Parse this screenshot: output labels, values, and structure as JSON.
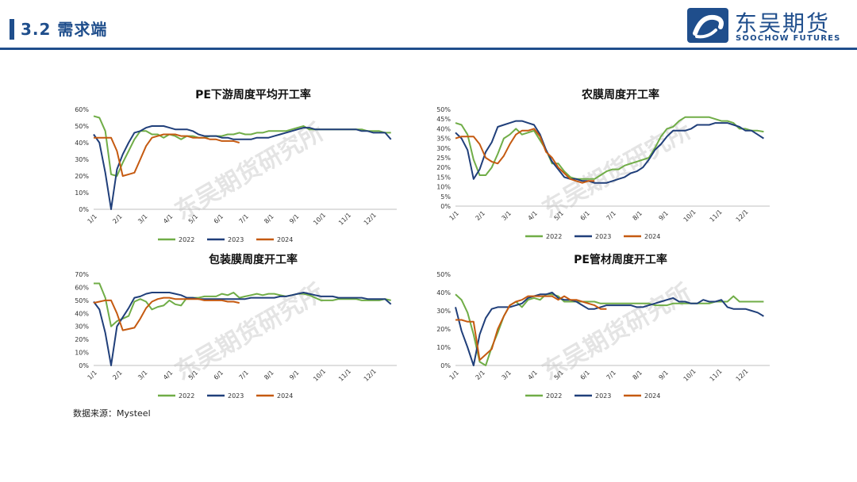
{
  "header": {
    "title": "3.2 需求端"
  },
  "logo": {
    "name_cn": "东吴期货",
    "name_en": "SOOCHOW FUTURES"
  },
  "source": "数据来源：Mysteel",
  "watermark": "东吴期货研究所",
  "colors": {
    "2022": "#70ad47",
    "2023": "#203f7a",
    "2024": "#c55a11",
    "brand": "#1f4e8c"
  },
  "chart_data": [
    {
      "id": "pe-downstream",
      "type": "line",
      "title": "PE下游周度平均开工率",
      "ylim": [
        0,
        60
      ],
      "ystep": 10,
      "yunit": "%",
      "x_range": [
        0,
        52
      ],
      "xticks": [
        "1/1",
        "2/1",
        "3/1",
        "4/1",
        "5/1",
        "6/1",
        "7/1",
        "8/1",
        "9/1",
        "10/1",
        "11/1",
        "12/1"
      ],
      "series": [
        {
          "name": "2022",
          "x": [
            0,
            1,
            2,
            3,
            4,
            5,
            6,
            7,
            8,
            9,
            10,
            11,
            12,
            13,
            14,
            15,
            16,
            17,
            18,
            19,
            20,
            21,
            22,
            23,
            24,
            25,
            26,
            27,
            28,
            29,
            30,
            31,
            32,
            33,
            34,
            35,
            36,
            37,
            38,
            39,
            40,
            41,
            42,
            43,
            44,
            45,
            46,
            47,
            48,
            49,
            50,
            51
          ],
          "values": [
            56,
            55,
            47,
            21,
            20,
            28,
            35,
            42,
            47,
            47,
            45,
            45,
            43,
            45,
            44,
            42,
            44,
            44,
            43,
            43,
            44,
            44,
            44,
            45,
            45,
            46,
            45,
            45,
            46,
            46,
            47,
            47,
            47,
            47,
            48,
            49,
            50,
            48,
            48,
            48,
            48,
            48,
            48,
            48,
            48,
            48,
            48,
            47,
            47,
            47,
            46,
            46
          ]
        },
        {
          "name": "2023",
          "x": [
            0,
            1,
            2,
            3,
            4,
            5,
            6,
            7,
            8,
            9,
            10,
            11,
            12,
            13,
            14,
            15,
            16,
            17,
            18,
            19,
            20,
            21,
            22,
            23,
            24,
            25,
            26,
            27,
            28,
            29,
            30,
            31,
            32,
            33,
            34,
            35,
            36,
            37,
            38,
            39,
            40,
            41,
            42,
            43,
            44,
            45,
            46,
            47,
            48,
            49,
            50,
            51
          ],
          "values": [
            45,
            40,
            22,
            0,
            24,
            33,
            40,
            46,
            47,
            49,
            50,
            50,
            50,
            49,
            48,
            48,
            48,
            47,
            45,
            44,
            44,
            44,
            43,
            43,
            42,
            42,
            42,
            42,
            43,
            43,
            43,
            44,
            45,
            46,
            47,
            48,
            49,
            49,
            48,
            48,
            48,
            48,
            48,
            48,
            48,
            48,
            47,
            47,
            46,
            46,
            46,
            42
          ]
        },
        {
          "name": "2024",
          "x": [
            0,
            1,
            2,
            3,
            4,
            5,
            6,
            7,
            8,
            9,
            10,
            11,
            12,
            13,
            14,
            15,
            16,
            17,
            18,
            19,
            20,
            21,
            22,
            23,
            24,
            25
          ],
          "values": [
            43,
            43,
            43,
            43,
            35,
            20,
            21,
            22,
            30,
            38,
            43,
            44,
            45,
            45,
            45,
            44,
            44,
            43,
            43,
            43,
            42,
            42,
            41,
            41,
            41,
            40
          ]
        }
      ]
    },
    {
      "id": "agri-film",
      "type": "line",
      "title": "农膜周度开工率",
      "ylim": [
        0,
        50
      ],
      "ystep": 5,
      "yunit": "%",
      "x_range": [
        0,
        52
      ],
      "xticks": [
        "1/1",
        "2/1",
        "3/1",
        "4/1",
        "5/1",
        "6/1",
        "7/1",
        "8/1",
        "9/1",
        "10/1",
        "11/1",
        "12/1"
      ],
      "series": [
        {
          "name": "2022",
          "x": [
            0,
            1,
            2,
            3,
            4,
            5,
            6,
            7,
            8,
            9,
            10,
            11,
            12,
            13,
            14,
            15,
            16,
            17,
            18,
            19,
            20,
            21,
            22,
            23,
            24,
            25,
            26,
            27,
            28,
            29,
            30,
            31,
            32,
            33,
            34,
            35,
            36,
            37,
            38,
            39,
            40,
            41,
            42,
            43,
            44,
            45,
            46,
            47,
            48,
            49,
            50,
            51
          ],
          "values": [
            43,
            42,
            37,
            24,
            16,
            16,
            20,
            27,
            35,
            37,
            40,
            37,
            38,
            39,
            34,
            29,
            22,
            22,
            18,
            15,
            14,
            14,
            14,
            14,
            16,
            18,
            19,
            19,
            21,
            22,
            23,
            24,
            25,
            30,
            36,
            40,
            41,
            44,
            46,
            46,
            46,
            46,
            46,
            45,
            44,
            44,
            43,
            40,
            40,
            39,
            39,
            38.5
          ]
        },
        {
          "name": "2023",
          "x": [
            0,
            1,
            2,
            3,
            4,
            5,
            6,
            7,
            8,
            9,
            10,
            11,
            12,
            13,
            14,
            15,
            16,
            17,
            18,
            19,
            20,
            21,
            22,
            23,
            24,
            25,
            26,
            27,
            28,
            29,
            30,
            31,
            32,
            33,
            34,
            35,
            36,
            37,
            38,
            39,
            40,
            41,
            42,
            43,
            44,
            45,
            46,
            47,
            48,
            49,
            50,
            51
          ],
          "values": [
            38,
            35,
            29,
            14,
            19,
            28,
            33,
            41,
            42,
            43,
            44,
            44,
            43,
            42,
            37,
            29,
            23,
            19,
            15,
            14,
            14,
            13,
            13,
            12,
            12,
            12,
            13,
            14,
            15,
            17,
            18,
            20,
            24,
            29,
            32,
            36,
            39,
            39,
            39,
            40,
            42,
            42,
            42,
            43,
            43,
            43,
            42,
            41,
            39,
            39,
            37,
            35
          ]
        },
        {
          "name": "2024",
          "x": [
            0,
            1,
            2,
            3,
            4,
            5,
            6,
            7,
            8,
            9,
            10,
            11,
            12,
            13,
            14,
            15,
            16,
            17,
            18,
            19,
            20,
            21,
            22,
            23
          ],
          "values": [
            35,
            36,
            36,
            36,
            32,
            25,
            23,
            22,
            26,
            32,
            37,
            39,
            39,
            40,
            36,
            28,
            25,
            20,
            17,
            14,
            13,
            12,
            13,
            13
          ]
        }
      ]
    },
    {
      "id": "packaging-film",
      "type": "line",
      "title": "包装膜周度开工率",
      "ylim": [
        0,
        70
      ],
      "ystep": 10,
      "yunit": "%",
      "x_range": [
        0,
        52
      ],
      "xticks": [
        "1/1",
        "2/1",
        "3/1",
        "4/1",
        "5/1",
        "6/1",
        "7/1",
        "8/1",
        "9/1",
        "10/1",
        "11/1",
        "12/1"
      ],
      "series": [
        {
          "name": "2022",
          "x": [
            0,
            1,
            2,
            3,
            4,
            5,
            6,
            7,
            8,
            9,
            10,
            11,
            12,
            13,
            14,
            15,
            16,
            17,
            18,
            19,
            20,
            21,
            22,
            23,
            24,
            25,
            26,
            27,
            28,
            29,
            30,
            31,
            32,
            33,
            34,
            35,
            36,
            37,
            38,
            39,
            40,
            41,
            42,
            43,
            44,
            45,
            46,
            47,
            48,
            49,
            50,
            51
          ],
          "values": [
            63,
            63,
            52,
            30,
            34,
            36,
            38,
            49,
            51,
            49,
            43,
            45,
            46,
            50,
            47,
            46,
            52,
            52,
            52,
            53,
            53,
            53,
            55,
            54,
            56,
            52,
            53,
            54,
            55,
            54,
            55,
            55,
            54,
            53,
            54,
            55,
            55,
            54,
            52,
            50,
            50,
            50,
            51,
            51,
            51,
            51,
            50,
            50,
            50,
            50,
            51,
            50
          ]
        },
        {
          "name": "2023",
          "x": [
            0,
            1,
            2,
            3,
            4,
            5,
            6,
            7,
            8,
            9,
            10,
            11,
            12,
            13,
            14,
            15,
            16,
            17,
            18,
            19,
            20,
            21,
            22,
            23,
            24,
            25,
            26,
            27,
            28,
            29,
            30,
            31,
            32,
            33,
            34,
            35,
            36,
            37,
            38,
            39,
            40,
            41,
            42,
            43,
            44,
            45,
            46,
            47,
            48,
            49,
            50,
            51
          ],
          "values": [
            49,
            43,
            25,
            0,
            30,
            37,
            44,
            52,
            53,
            55,
            56,
            56,
            56,
            56,
            55,
            54,
            52,
            52,
            51,
            51,
            51,
            51,
            51,
            51,
            51,
            51,
            51,
            52,
            52,
            52,
            52,
            52,
            53,
            53,
            54,
            55,
            56,
            55,
            54,
            53,
            53,
            53,
            52,
            52,
            52,
            52,
            52,
            51,
            51,
            51,
            51,
            47
          ]
        },
        {
          "name": "2024",
          "x": [
            0,
            1,
            2,
            3,
            4,
            5,
            6,
            7,
            8,
            9,
            10,
            11,
            12,
            13,
            14,
            15,
            16,
            17,
            18,
            19,
            20,
            21,
            22,
            23,
            24,
            25
          ],
          "values": [
            48,
            49,
            50,
            50,
            40,
            27,
            28,
            29,
            36,
            44,
            49,
            51,
            52,
            52,
            51,
            51,
            51,
            51,
            51,
            50,
            50,
            50,
            50,
            49,
            49,
            48
          ]
        }
      ]
    },
    {
      "id": "pe-pipe",
      "type": "line",
      "title": "PE管材周度开工率",
      "ylim": [
        0,
        50
      ],
      "ystep": 10,
      "yunit": "%",
      "x_range": [
        0,
        52
      ],
      "xticks": [
        "1/1",
        "2/1",
        "3/1",
        "4/1",
        "5/1",
        "6/1",
        "7/1",
        "8/1",
        "9/1",
        "10/1",
        "11/1",
        "12/1"
      ],
      "series": [
        {
          "name": "2022",
          "x": [
            0,
            1,
            2,
            3,
            4,
            5,
            6,
            7,
            8,
            9,
            10,
            11,
            12,
            13,
            14,
            15,
            16,
            17,
            18,
            19,
            20,
            21,
            22,
            23,
            24,
            25,
            26,
            27,
            28,
            29,
            30,
            31,
            32,
            33,
            34,
            35,
            36,
            37,
            38,
            39,
            40,
            41,
            42,
            43,
            44,
            45,
            46,
            47,
            48,
            49,
            50,
            51
          ],
          "values": [
            39,
            36,
            29,
            17,
            2,
            0,
            10,
            18,
            27,
            33,
            35,
            32,
            36,
            37,
            36,
            39,
            39,
            38,
            35,
            35,
            35,
            35,
            35,
            35,
            34,
            34,
            34,
            34,
            34,
            34,
            34,
            34,
            34,
            33,
            33,
            33,
            34,
            34,
            34,
            34,
            34,
            34,
            34,
            35,
            35,
            35,
            38,
            35,
            35,
            35,
            35,
            35
          ]
        },
        {
          "name": "2023",
          "x": [
            0,
            1,
            2,
            3,
            4,
            5,
            6,
            7,
            8,
            9,
            10,
            11,
            12,
            13,
            14,
            15,
            16,
            17,
            18,
            19,
            20,
            21,
            22,
            23,
            24,
            25,
            26,
            27,
            28,
            29,
            30,
            31,
            32,
            33,
            34,
            35,
            36,
            37,
            38,
            39,
            40,
            41,
            42,
            43,
            44,
            45,
            46,
            47,
            48,
            49,
            50,
            51
          ],
          "values": [
            32,
            19,
            10,
            0,
            17,
            26,
            31,
            32,
            32,
            32,
            33,
            34,
            37,
            38,
            39,
            39,
            40,
            37,
            36,
            36,
            35,
            33,
            31,
            31,
            32,
            33,
            33,
            33,
            33,
            33,
            32,
            32,
            33,
            34,
            35,
            36,
            37,
            35,
            35,
            34,
            34,
            36,
            35,
            35,
            36,
            32,
            31,
            31,
            31,
            30,
            29,
            27
          ]
        },
        {
          "name": "2024",
          "x": [
            0,
            1,
            2,
            3,
            4,
            5,
            6,
            7,
            8,
            9,
            10,
            11,
            12,
            13,
            14,
            15,
            16,
            17,
            18,
            19,
            20,
            21,
            22,
            23,
            24,
            25
          ],
          "values": [
            25,
            25,
            24,
            24,
            3,
            6,
            9,
            20,
            27,
            33,
            35,
            36,
            38,
            38,
            38,
            38,
            38,
            36,
            38,
            36,
            36,
            35,
            34,
            33,
            31,
            31
          ]
        }
      ]
    }
  ]
}
